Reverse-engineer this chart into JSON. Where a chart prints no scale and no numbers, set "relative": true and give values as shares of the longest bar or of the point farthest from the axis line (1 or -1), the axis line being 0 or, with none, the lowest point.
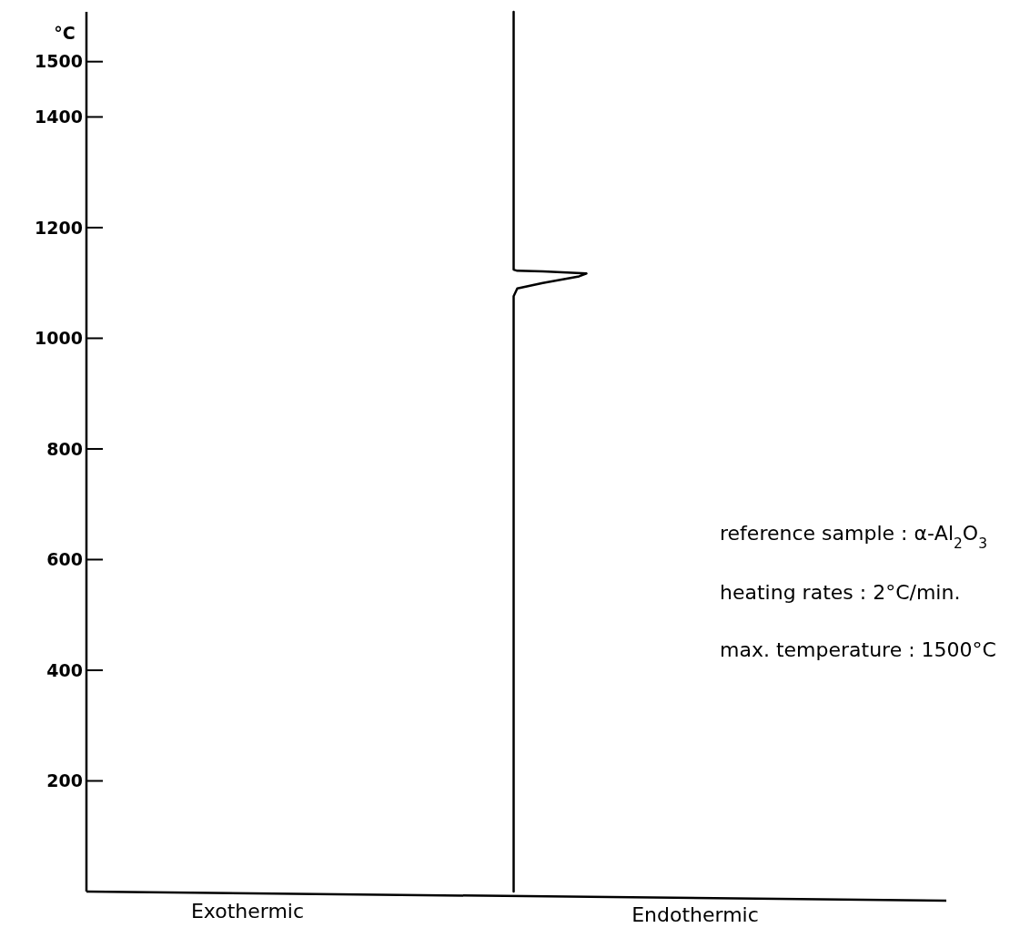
{
  "chart_data": {
    "type": "line",
    "orientation": "horizontal",
    "relative": true,
    "ylabel": "°C",
    "x": [
      0,
      1076,
      1090,
      1100,
      1112,
      1117,
      1121,
      1122,
      1124,
      1590
    ],
    "series": [
      {
        "color": "#000000",
        "values": [
          0,
          0,
          0.05,
          0.4,
          0.9,
          1,
          0.4,
          0.05,
          0,
          0
        ]
      }
    ],
    "ylim": [
      0,
      1590
    ],
    "yticks": [
      200,
      400,
      600,
      800,
      1000,
      1200,
      1400,
      1500
    ],
    "tick_labels": "y",
    "grid": false,
    "marker": "none",
    "line_style": "solid",
    "annotations": [
      "reference sample : α-Al$_{2}$O$_{3}$",
      "heating rates : 2°C/min.",
      "max. temperature : 1500°C",
      "Exothermic",
      "Endothermic"
    ]
  }
}
